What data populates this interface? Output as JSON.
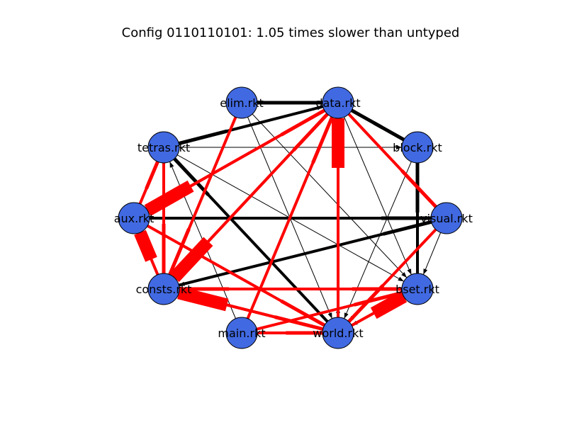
{
  "title": "Config 0110110101: 1.05 times slower than untyped",
  "colors": {
    "node_fill": "#4169E1",
    "node_stroke": "#000000",
    "edge_typed": "#000000",
    "edge_boundary": "#FF0000",
    "background": "#FFFFFF"
  },
  "nodes": [
    {
      "id": "elim",
      "label": "elim.rkt"
    },
    {
      "id": "data",
      "label": "data.rkt"
    },
    {
      "id": "block",
      "label": "block.rkt"
    },
    {
      "id": "visual",
      "label": "visual.rkt"
    },
    {
      "id": "bset",
      "label": "bset.rkt"
    },
    {
      "id": "world",
      "label": "world.rkt"
    },
    {
      "id": "main",
      "label": "main.rkt"
    },
    {
      "id": "consts",
      "label": "consts.rkt"
    },
    {
      "id": "aux",
      "label": "aux.rkt"
    },
    {
      "id": "tetras",
      "label": "tetras.rkt"
    }
  ],
  "edges": [
    {
      "from": "elim",
      "to": "data",
      "kind": "typed",
      "weight": 1
    },
    {
      "from": "tetras",
      "to": "data",
      "kind": "typed",
      "weight": 1
    },
    {
      "from": "tetras",
      "to": "block",
      "kind": "typed",
      "weight": 1
    },
    {
      "from": "elim",
      "to": "bset",
      "kind": "typed",
      "weight": 1
    },
    {
      "from": "tetras",
      "to": "bset",
      "kind": "typed",
      "weight": 1
    },
    {
      "from": "aux",
      "to": "visual",
      "kind": "typed",
      "weight": 1
    },
    {
      "from": "data",
      "to": "world",
      "kind": "typed",
      "weight": 1
    },
    {
      "from": "data",
      "to": "bset",
      "kind": "typed",
      "weight": 1
    },
    {
      "from": "block",
      "to": "world",
      "kind": "typed",
      "weight": 1
    },
    {
      "from": "visual",
      "to": "consts",
      "kind": "typed",
      "weight": 1
    },
    {
      "from": "visual",
      "to": "bset",
      "kind": "typed",
      "weight": 1
    },
    {
      "from": "bset",
      "to": "world",
      "kind": "typed",
      "weight": 1
    },
    {
      "from": "main",
      "to": "tetras",
      "kind": "typed",
      "weight": 1
    },
    {
      "from": "elim",
      "to": "world",
      "kind": "typed",
      "weight": 1
    },
    {
      "from": "visual",
      "to": "world",
      "kind": "typed",
      "weight": 1
    },
    {
      "from": "data",
      "to": "elim",
      "kind": "typed",
      "weight": 5
    },
    {
      "from": "data",
      "to": "tetras",
      "kind": "typed",
      "weight": 5
    },
    {
      "from": "block",
      "to": "data",
      "kind": "typed",
      "weight": 5
    },
    {
      "from": "data",
      "to": "block",
      "kind": "typed",
      "weight": 5
    },
    {
      "from": "bset",
      "to": "block",
      "kind": "typed",
      "weight": 5
    },
    {
      "from": "world",
      "to": "tetras",
      "kind": "typed",
      "weight": 5
    },
    {
      "from": "consts",
      "to": "visual",
      "kind": "typed",
      "weight": 5
    },
    {
      "from": "aux",
      "to": "visual",
      "kind": "typed",
      "weight": 5
    },
    {
      "from": "elim",
      "to": "data",
      "kind": "typed",
      "weight": 5
    },
    {
      "from": "consts",
      "to": "data",
      "kind": "boundary",
      "weight": 5
    },
    {
      "from": "aux",
      "to": "data",
      "kind": "boundary",
      "weight": 5
    },
    {
      "from": "main",
      "to": "data",
      "kind": "boundary",
      "weight": 5
    },
    {
      "from": "tetras",
      "to": "consts",
      "kind": "boundary",
      "weight": 5
    },
    {
      "from": "aux",
      "to": "tetras",
      "kind": "boundary",
      "weight": 5
    },
    {
      "from": "aux",
      "to": "world",
      "kind": "boundary",
      "weight": 5
    },
    {
      "from": "consts",
      "to": "bset",
      "kind": "boundary",
      "weight": 5
    },
    {
      "from": "consts",
      "to": "world",
      "kind": "boundary",
      "weight": 5
    },
    {
      "from": "main",
      "to": "bset",
      "kind": "boundary",
      "weight": 5
    },
    {
      "from": "main",
      "to": "world",
      "kind": "boundary",
      "weight": 5
    },
    {
      "from": "visual",
      "to": "world",
      "kind": "boundary",
      "weight": 5
    },
    {
      "from": "bset",
      "to": "consts",
      "kind": "boundary",
      "weight": 5
    },
    {
      "from": "elim",
      "to": "consts",
      "kind": "boundary",
      "weight": 5
    },
    {
      "from": "data",
      "to": "visual",
      "kind": "boundary",
      "weight": 5
    },
    {
      "from": "world",
      "to": "data",
      "kind": "boundary",
      "weight": 18
    },
    {
      "from": "data",
      "to": "aux",
      "kind": "boundary",
      "weight": 18
    },
    {
      "from": "world",
      "to": "bset",
      "kind": "boundary",
      "weight": 18
    },
    {
      "from": "world",
      "to": "consts",
      "kind": "boundary",
      "weight": 18
    },
    {
      "from": "consts",
      "to": "aux",
      "kind": "boundary",
      "weight": 18
    },
    {
      "from": "data",
      "to": "consts",
      "kind": "boundary",
      "weight": 18
    }
  ]
}
